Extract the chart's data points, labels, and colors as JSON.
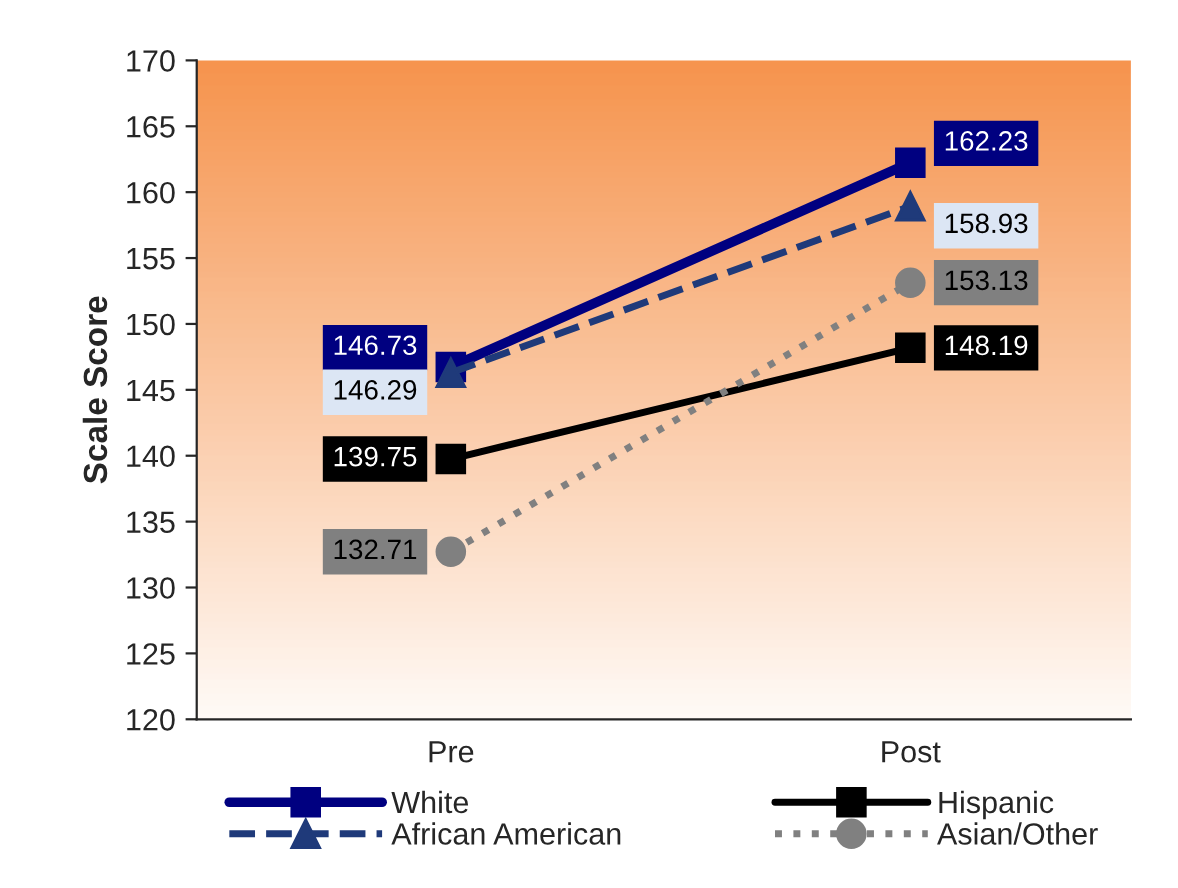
{
  "chart_data": {
    "type": "line",
    "ylabel": "Scale Score",
    "categories": [
      "Pre",
      "Post"
    ],
    "series": [
      {
        "name": "White",
        "color": "#000080",
        "values": [
          146.73,
          162.23
        ],
        "marker": "square",
        "line_style": "solid"
      },
      {
        "name": "Hispanic",
        "color": "#000000",
        "values": [
          139.75,
          148.19
        ],
        "marker": "square",
        "line_style": "solid"
      },
      {
        "name": "African American",
        "color": "#1f3a7a",
        "values": [
          146.29,
          158.93
        ],
        "marker": "triangle",
        "line_style": "dashed"
      },
      {
        "name": "Asian/Other",
        "color": "#808080",
        "values": [
          132.71,
          153.13
        ],
        "marker": "circle",
        "line_style": "dotted"
      }
    ],
    "ylim": [
      120,
      170
    ],
    "yticks": [
      120,
      125,
      130,
      135,
      140,
      145,
      150,
      155,
      160,
      165,
      170
    ],
    "data_labels": true,
    "grid": false,
    "legend": "bottom"
  }
}
